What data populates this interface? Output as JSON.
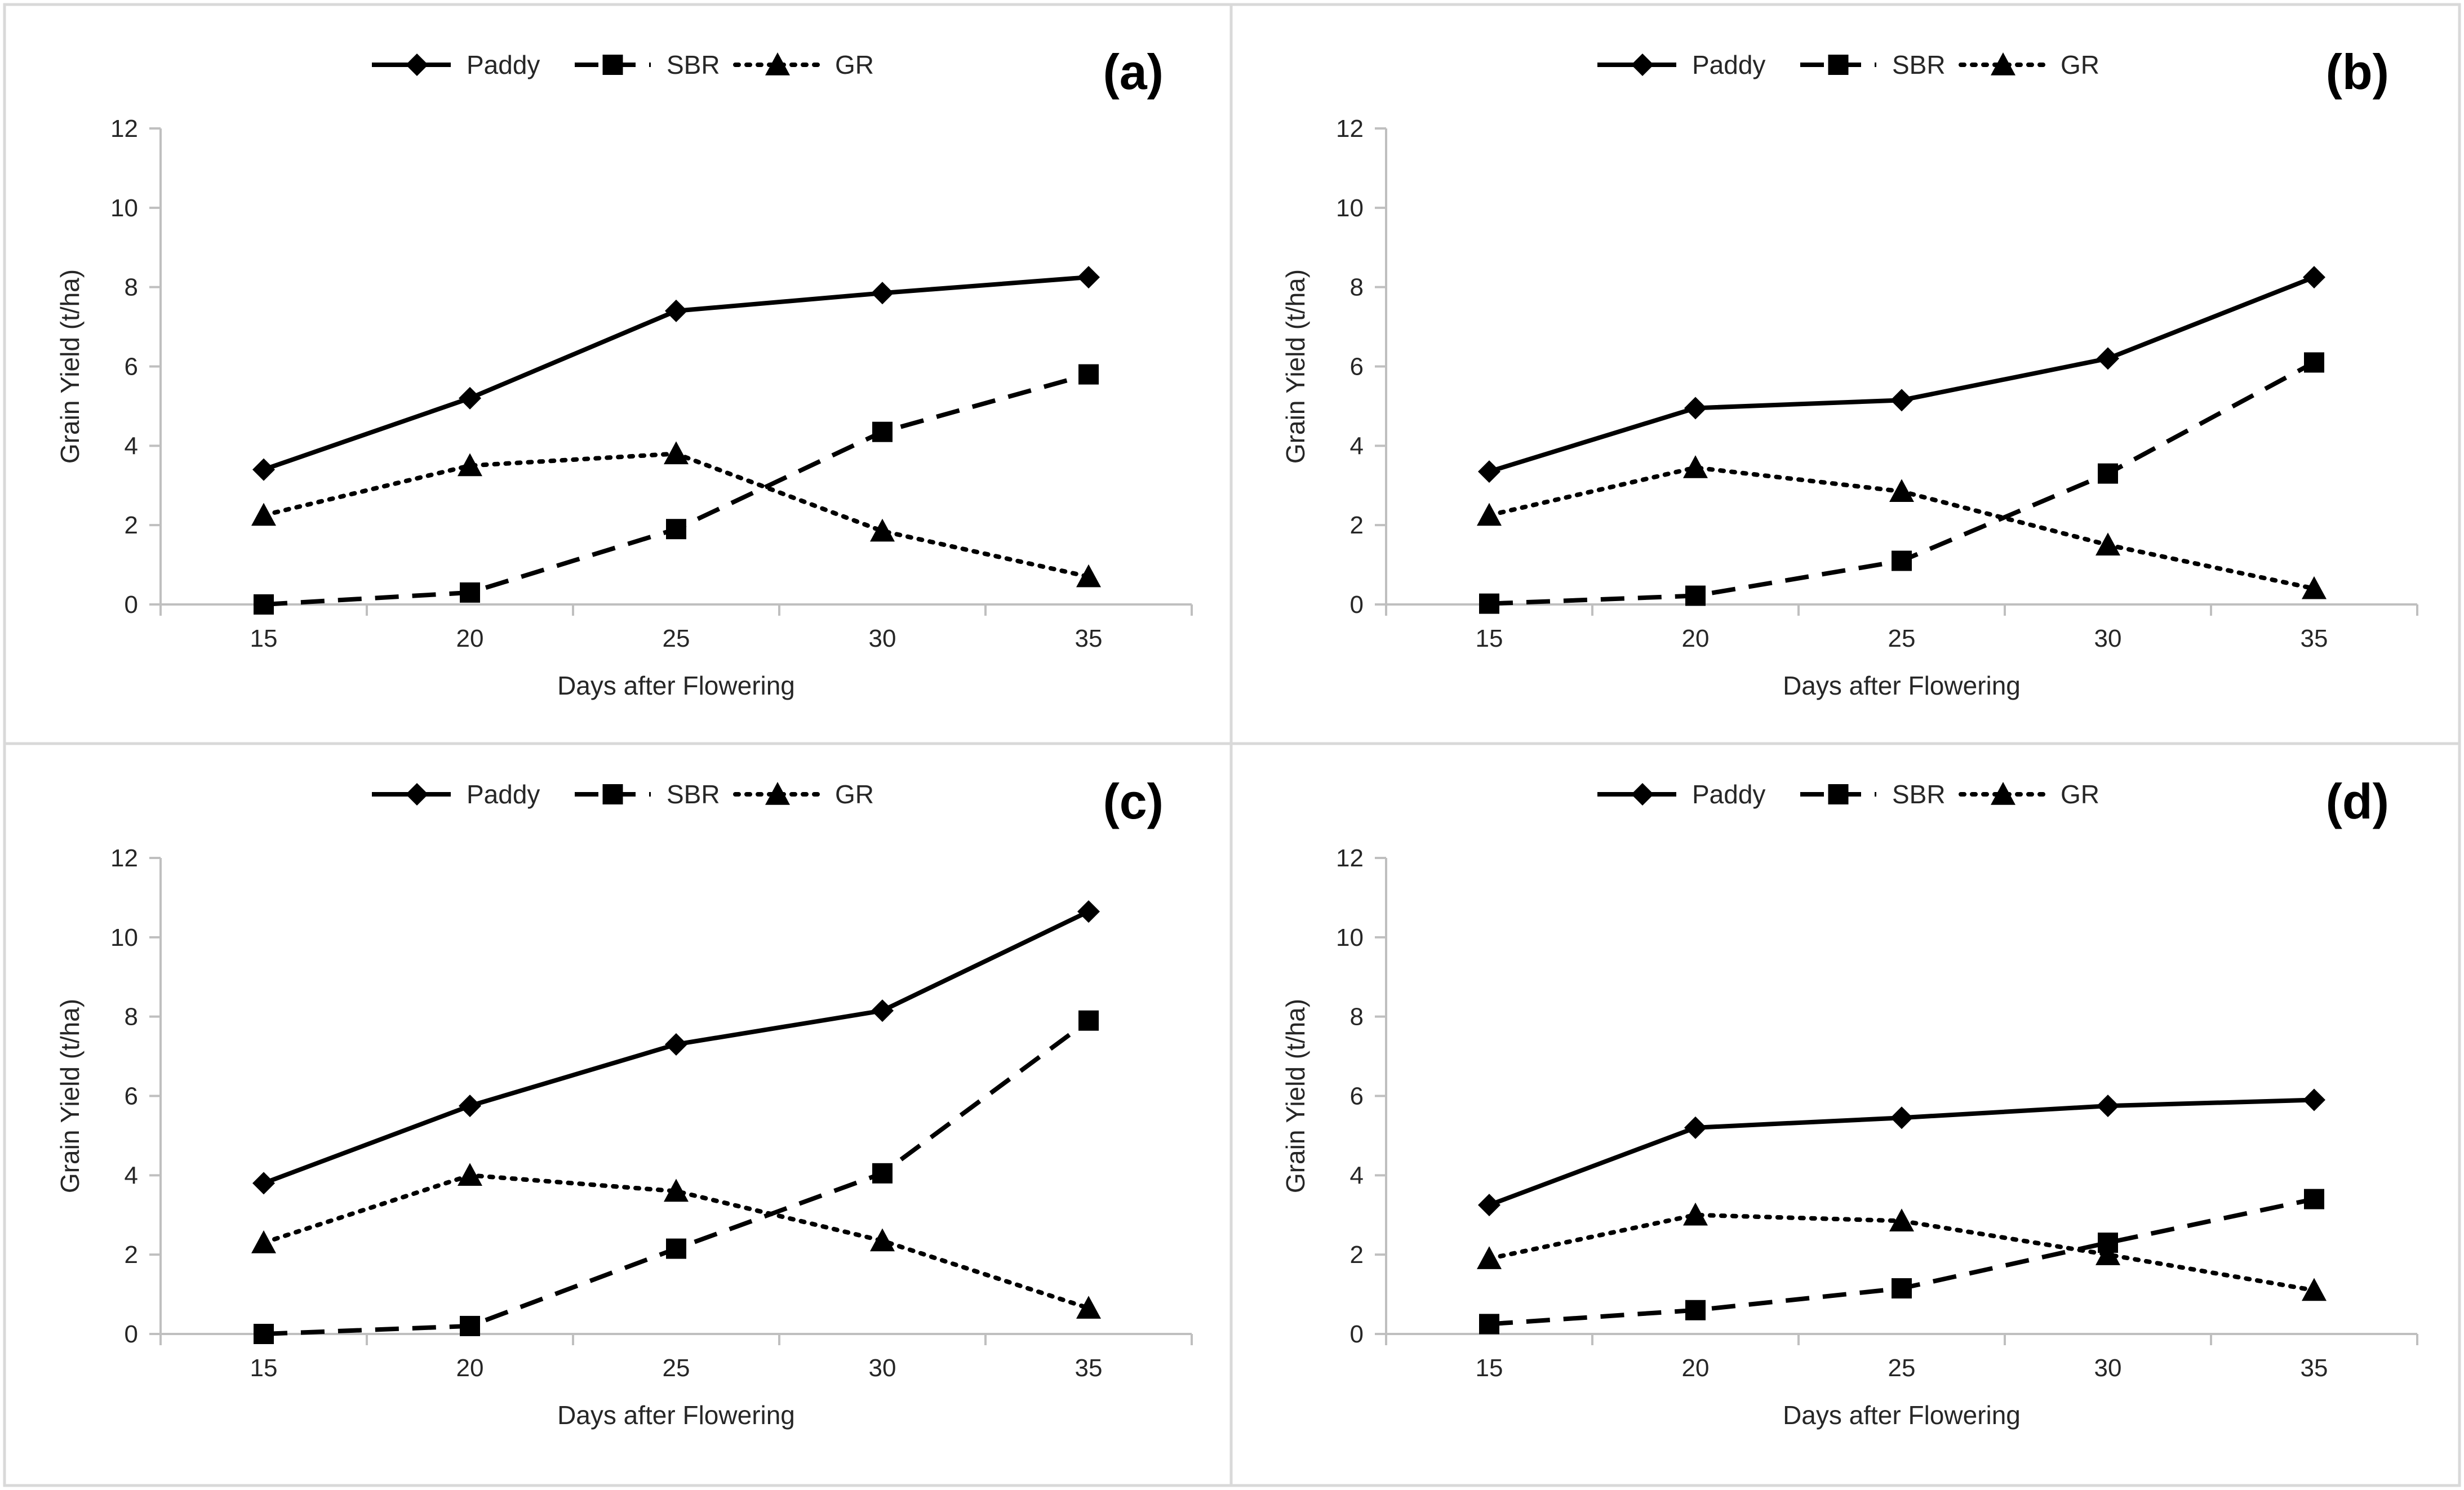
{
  "chart_data": [
    {
      "type": "line",
      "panel_label": "(a)",
      "xlabel": "Days after Flowering",
      "ylabel": "Grain Yield (t/ha)",
      "x": [
        15,
        20,
        25,
        30,
        35
      ],
      "ylim": [
        0,
        12
      ],
      "yticks": [
        0,
        2,
        4,
        6,
        8,
        10,
        12
      ],
      "legend_position": "top",
      "series": [
        {
          "name": "Paddy",
          "marker": "diamond",
          "line_style": "solid",
          "values": [
            3.4,
            5.2,
            7.4,
            7.85,
            8.25
          ]
        },
        {
          "name": "SBR",
          "marker": "square",
          "line_style": "dashed",
          "values": [
            0.0,
            0.3,
            1.9,
            4.35,
            5.8
          ]
        },
        {
          "name": "GR",
          "marker": "triangle",
          "line_style": "dotted",
          "values": [
            2.25,
            3.5,
            3.8,
            1.85,
            0.7
          ]
        }
      ]
    },
    {
      "type": "line",
      "panel_label": "(b)",
      "xlabel": "Days after Flowering",
      "ylabel": "Grain Yield (t/ha)",
      "x": [
        15,
        20,
        25,
        30,
        35
      ],
      "ylim": [
        0,
        12
      ],
      "yticks": [
        0,
        2,
        4,
        6,
        8,
        10,
        12
      ],
      "legend_position": "top",
      "series": [
        {
          "name": "Paddy",
          "marker": "diamond",
          "line_style": "solid",
          "values": [
            3.35,
            4.95,
            5.15,
            6.2,
            8.25
          ]
        },
        {
          "name": "SBR",
          "marker": "square",
          "line_style": "dashed",
          "values": [
            0.02,
            0.22,
            1.1,
            3.3,
            6.1
          ]
        },
        {
          "name": "GR",
          "marker": "triangle",
          "line_style": "dotted",
          "values": [
            2.25,
            3.45,
            2.85,
            1.5,
            0.4
          ]
        }
      ]
    },
    {
      "type": "line",
      "panel_label": "(c)",
      "xlabel": "Days after Flowering",
      "ylabel": "Grain Yield (t/ha)",
      "x": [
        15,
        20,
        25,
        30,
        35
      ],
      "ylim": [
        0,
        12
      ],
      "yticks": [
        0,
        2,
        4,
        6,
        8,
        10,
        12
      ],
      "legend_position": "top",
      "series": [
        {
          "name": "Paddy",
          "marker": "diamond",
          "line_style": "solid",
          "values": [
            3.8,
            5.75,
            7.3,
            8.15,
            10.65
          ]
        },
        {
          "name": "SBR",
          "marker": "square",
          "line_style": "dashed",
          "values": [
            0.0,
            0.2,
            2.15,
            4.05,
            7.9
          ]
        },
        {
          "name": "GR",
          "marker": "triangle",
          "line_style": "dotted",
          "values": [
            2.3,
            4.0,
            3.6,
            2.35,
            0.65
          ]
        }
      ]
    },
    {
      "type": "line",
      "panel_label": "(d)",
      "xlabel": "Days after Flowering",
      "ylabel": "Grain Yield (t/ha)",
      "x": [
        15,
        20,
        25,
        30,
        35
      ],
      "ylim": [
        0,
        12
      ],
      "yticks": [
        0,
        2,
        4,
        6,
        8,
        10,
        12
      ],
      "legend_position": "top",
      "series": [
        {
          "name": "Paddy",
          "marker": "diamond",
          "line_style": "solid",
          "values": [
            3.25,
            5.2,
            5.45,
            5.75,
            5.9
          ]
        },
        {
          "name": "SBR",
          "marker": "square",
          "line_style": "dashed",
          "values": [
            0.25,
            0.6,
            1.15,
            2.3,
            3.4
          ]
        },
        {
          "name": "GR",
          "marker": "triangle",
          "line_style": "dotted",
          "values": [
            1.9,
            3.0,
            2.85,
            2.0,
            1.1
          ]
        }
      ]
    }
  ],
  "colors": {
    "line": "#000000",
    "axis": "#bfbfbf",
    "text": "#262626",
    "panel_border": "#d9d9d9"
  }
}
